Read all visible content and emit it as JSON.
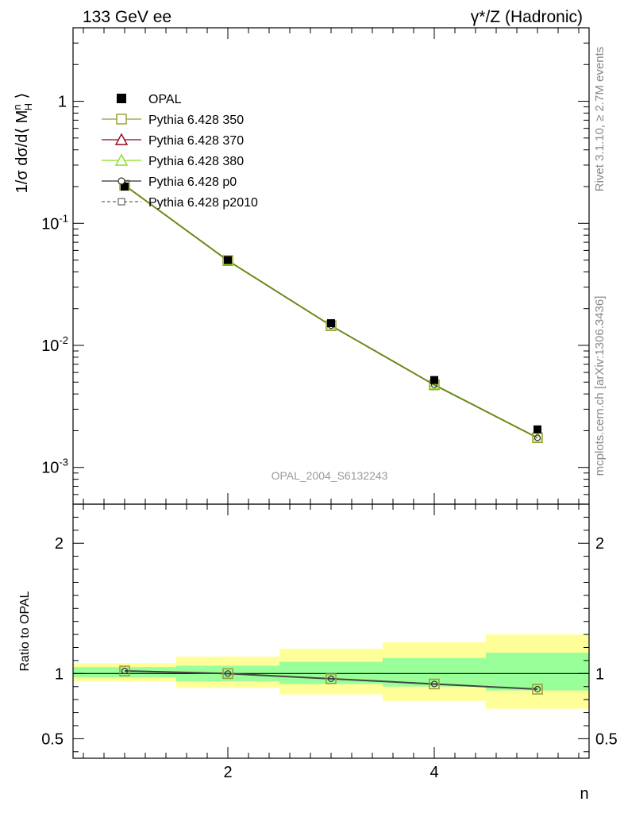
{
  "header": {
    "left": "133 GeV ee",
    "right": "γ*/Z (Hadronic)"
  },
  "side_labels": {
    "rivet": "Rivet 3.1.10, ≥ 2.7M events",
    "mcplots": "mcplots.cern.ch [arXiv:1306.3436]"
  },
  "watermark": "OPAL_2004_S6132243",
  "axes": {
    "main_ylabel": "1/σ dσ/d⟨ M_H^n ⟩",
    "ratio_ylabel": "Ratio to OPAL",
    "xlabel": "n",
    "main_yticks": [
      "1",
      "10^-1",
      "10^-2",
      "10^-3"
    ],
    "ratio_yticks": [
      "2",
      "1",
      "0.5"
    ],
    "xticks": [
      "2",
      "4"
    ]
  },
  "legend": [
    {
      "label": "OPAL",
      "color": "#000000",
      "marker": "filled-square",
      "line": "none"
    },
    {
      "label": "Pythia 6.428 350",
      "color": "#999933",
      "marker": "open-square",
      "line": "solid"
    },
    {
      "label": "Pythia 6.428 370",
      "color": "#990022",
      "marker": "open-triangle",
      "line": "solid"
    },
    {
      "label": "Pythia 6.428 380",
      "color": "#88dd22",
      "marker": "open-triangle",
      "line": "solid"
    },
    {
      "label": "Pythia 6.428 p0",
      "color": "#333333",
      "marker": "open-circle",
      "line": "solid"
    },
    {
      "label": "Pythia 6.428 p2010",
      "color": "#666666",
      "marker": "open-square-small",
      "line": "dashed"
    }
  ],
  "chart_data": {
    "type": "scatter",
    "x": [
      1,
      2,
      3,
      4,
      5
    ],
    "xlim": [
      0.5,
      5.5
    ],
    "ylim": [
      0.0005,
      4.0
    ],
    "ylog": true,
    "ratio_ylim": [
      0.35,
      2.3
    ],
    "series": [
      {
        "name": "OPAL",
        "values": [
          0.2,
          0.05,
          0.0152,
          0.0052,
          0.00205
        ]
      },
      {
        "name": "Pythia 6.428 350",
        "values": [
          0.205,
          0.0495,
          0.0145,
          0.00475,
          0.00175
        ]
      },
      {
        "name": "Pythia 6.428 370",
        "values": [
          0.205,
          0.0495,
          0.0145,
          0.00475,
          0.00175
        ]
      },
      {
        "name": "Pythia 6.428 380",
        "values": [
          0.205,
          0.0495,
          0.0145,
          0.00475,
          0.00175
        ]
      },
      {
        "name": "Pythia 6.428 p0",
        "values": [
          0.205,
          0.0495,
          0.0145,
          0.00475,
          0.00175
        ]
      },
      {
        "name": "Pythia 6.428 p2010",
        "values": [
          0.205,
          0.0495,
          0.0145,
          0.00475,
          0.00175
        ]
      }
    ],
    "ratio": {
      "values": [
        1.02,
        1.0,
        0.96,
        0.92,
        0.88
      ],
      "bands": [
        {
          "xlo": 0.5,
          "xhi": 1.5,
          "stat_lo": 0.97,
          "stat_hi": 1.05,
          "tot_lo": 0.94,
          "tot_hi": 1.08
        },
        {
          "xlo": 1.5,
          "xhi": 2.5,
          "stat_lo": 0.94,
          "stat_hi": 1.06,
          "tot_lo": 0.89,
          "tot_hi": 1.13
        },
        {
          "xlo": 2.5,
          "xhi": 3.5,
          "stat_lo": 0.92,
          "stat_hi": 1.09,
          "tot_lo": 0.84,
          "tot_hi": 1.19
        },
        {
          "xlo": 3.5,
          "xhi": 4.5,
          "stat_lo": 0.9,
          "stat_hi": 1.12,
          "tot_lo": 0.79,
          "tot_hi": 1.24
        },
        {
          "xlo": 4.5,
          "xhi": 5.5,
          "stat_lo": 0.87,
          "stat_hi": 1.16,
          "tot_lo": 0.73,
          "tot_hi": 1.3
        }
      ]
    }
  },
  "colors": {
    "band_stat": "#99ff99",
    "band_total": "#ffff99",
    "axes": "#000000",
    "grey_text": "#888888",
    "mc_line": "#6a8a1a"
  }
}
